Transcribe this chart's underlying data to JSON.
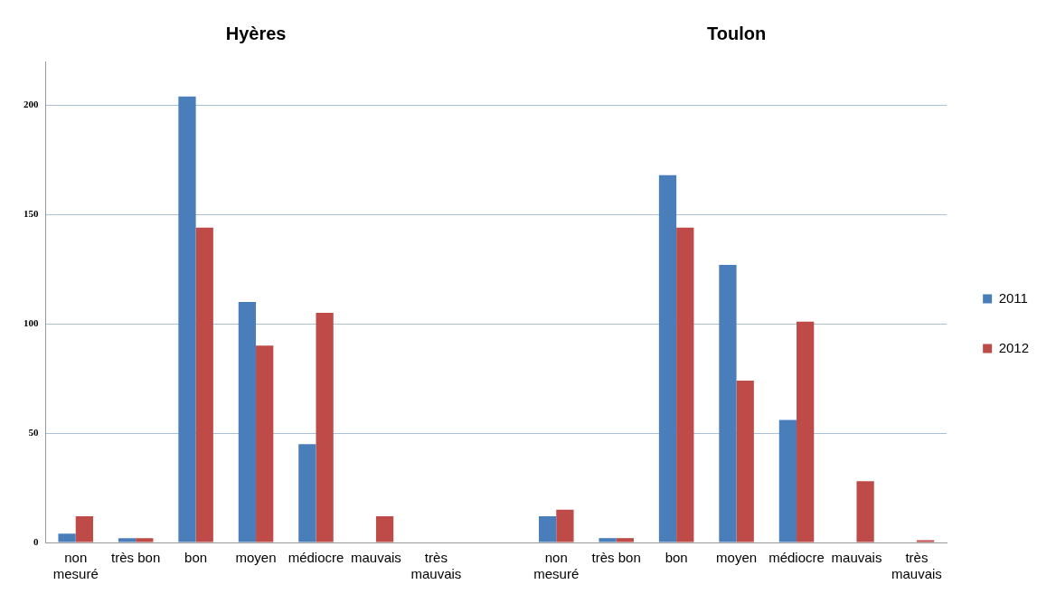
{
  "chart_data": {
    "type": "bar",
    "annotations": [
      "Hyères",
      "Toulon"
    ],
    "categories": [
      "non mesuré",
      "très bon",
      "bon",
      "moyen",
      "médiocre",
      "mauvais",
      "très mauvais",
      null,
      "non mesuré",
      "très bon",
      "bon",
      "moyen",
      "médiocre",
      "mauvais",
      "très mauvais"
    ],
    "series": [
      {
        "name": "2011",
        "color": "#4a7ebb",
        "values": [
          4,
          2,
          204,
          110,
          45,
          0,
          0,
          null,
          12,
          2,
          168,
          127,
          56,
          0,
          0
        ]
      },
      {
        "name": "2012",
        "color": "#be4b48",
        "values": [
          12,
          2,
          144,
          90,
          105,
          12,
          0,
          null,
          15,
          2,
          144,
          74,
          101,
          28,
          1
        ]
      }
    ],
    "ylim": [
      0,
      220
    ],
    "yticks": [
      0,
      50,
      100,
      150,
      200
    ],
    "grid": "y",
    "legend": "right"
  }
}
